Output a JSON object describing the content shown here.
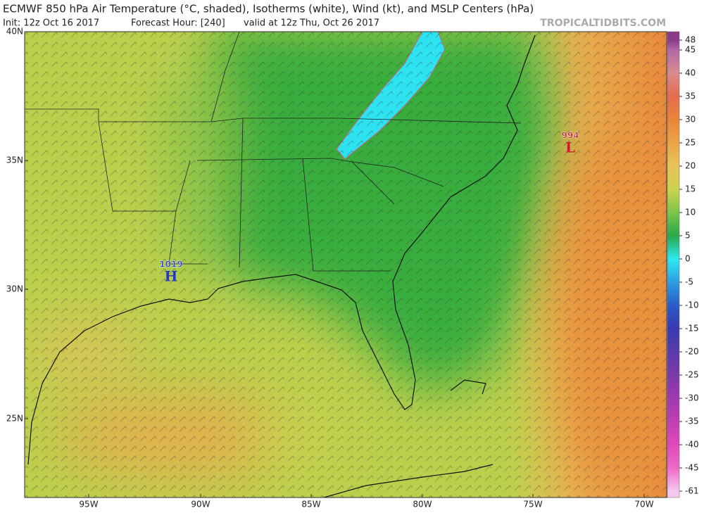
{
  "header": {
    "title": "ECMWF 850 hPa Air Temperature (°C, shaded), Isotherms (white), Wind (kt), and MSLP Centers (hPa)",
    "init": "Init: 12z Oct 16 2017",
    "forecast_hour": "Forecast Hour: [240]",
    "valid": "valid at 12z Thu, Oct 26 2017",
    "credit": "TROPICALTIDBITS.COM"
  },
  "map": {
    "latitude_labels": [
      "40N",
      "35N",
      "30N",
      "25N"
    ],
    "longitude_labels": [
      "95W",
      "90W",
      "85W",
      "80W",
      "75W",
      "70W"
    ],
    "pressure_centers": [
      {
        "symbol": "H",
        "value": "1019"
      },
      {
        "symbol": "L",
        "value": "994"
      }
    ]
  },
  "colorbar": {
    "labels": [
      48,
      45,
      40,
      35,
      30,
      25,
      20,
      15,
      10,
      5,
      0,
      -5,
      -10,
      -15,
      -20,
      -25,
      -30,
      -35,
      -40,
      -45,
      -61
    ],
    "colors": [
      "#8a3c8a",
      "#b06aa6",
      "#d88c8c",
      "#e56b4d",
      "#e8863a",
      "#eaa447",
      "#e8c35a",
      "#cdd352",
      "#7cc44a",
      "#2aa84a",
      "#2ee8f0",
      "#2d9de0",
      "#2a5ac8",
      "#3a3ab0",
      "#5a3aa8",
      "#7a3aa8",
      "#a03ab0",
      "#c040b0",
      "#e04ab8",
      "#ee6ac8",
      "#f4c8ec"
    ]
  }
}
